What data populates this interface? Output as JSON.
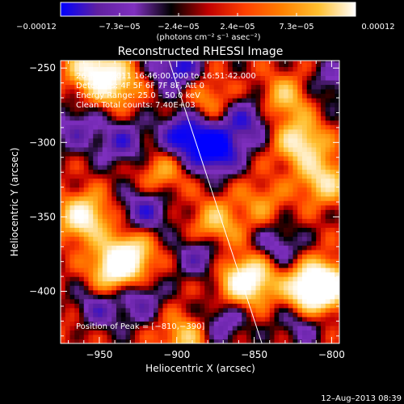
{
  "chart_data": {
    "type": "heatmap",
    "title": "Reconstructed RHESSI Image",
    "xlabel": "Heliocentric X (arcsec)",
    "ylabel": "Heliocentric Y (arcsec)",
    "xlim": [
      -975,
      -795
    ],
    "ylim": [
      -435,
      -245
    ],
    "x_ticks": [
      -950,
      -900,
      -850,
      -800
    ],
    "y_ticks": [
      -250,
      -300,
      -350,
      -400
    ],
    "x_tick_labels": [
      "−950",
      "−900",
      "−850",
      "−800"
    ],
    "y_tick_labels": [
      "−250",
      "−300",
      "−350",
      "−400"
    ],
    "colorbar": {
      "min": -0.00012,
      "max": 0.00012,
      "tick_labels": [
        "−0.00012",
        "−7.3e−05",
        "−2.4e−05",
        "2.4e−05",
        "7.3e−05",
        "0.00012"
      ],
      "units": "(photons cm⁻² s⁻¹ asec⁻²)",
      "colormap": [
        "#0000ff",
        "#6020a0",
        "#8030c0",
        "#000000",
        "#c00000",
        "#ff4000",
        "#ff8000",
        "#ffc030",
        "#ffffff"
      ]
    },
    "annotations": [
      "26–May–2011 16:46:00.000 to 16:51:42.000",
      "Detectors: 4F 5F 6F 7F 8F, Att 0",
      "Energy Range: 25.0 – 50.0 keV",
      "Clean     Total counts: 7.40E+03"
    ],
    "peak_label": "Position of Peak = [−810,−390]",
    "peak": [
      -810,
      -390
    ],
    "limb_line": [
      [
        -905,
        -245
      ],
      [
        -845,
        -435
      ]
    ],
    "grid": false,
    "footer": "12–Aug–2013 08:39",
    "hot_spots": [
      {
        "x": -805,
        "y": -395,
        "v": 1.0
      },
      {
        "x": -815,
        "y": -400,
        "v": 0.9
      },
      {
        "x": -850,
        "y": -390,
        "v": 0.7
      },
      {
        "x": -860,
        "y": -395,
        "v": 0.55
      },
      {
        "x": -875,
        "y": -355,
        "v": 0.6
      },
      {
        "x": -820,
        "y": -300,
        "v": 0.8
      },
      {
        "x": -805,
        "y": -325,
        "v": 0.7
      },
      {
        "x": -830,
        "y": -270,
        "v": 0.55
      },
      {
        "x": -960,
        "y": -350,
        "v": 0.9
      },
      {
        "x": -940,
        "y": -385,
        "v": 0.85
      },
      {
        "x": -930,
        "y": -375,
        "v": 0.75
      },
      {
        "x": -960,
        "y": -420,
        "v": 0.5
      },
      {
        "x": -940,
        "y": -260,
        "v": 0.7
      },
      {
        "x": -955,
        "y": -250,
        "v": 0.8
      },
      {
        "x": -895,
        "y": -430,
        "v": 0.55
      },
      {
        "x": -910,
        "y": -320,
        "v": 0.45
      },
      {
        "x": -880,
        "y": -270,
        "v": 0.4
      },
      {
        "x": -845,
        "y": -340,
        "v": 0.35
      },
      {
        "x": -900,
        "y": -250,
        "v": -0.75
      },
      {
        "x": -875,
        "y": -305,
        "v": -1.0
      },
      {
        "x": -895,
        "y": -295,
        "v": -0.85
      },
      {
        "x": -855,
        "y": -285,
        "v": -0.6
      },
      {
        "x": -935,
        "y": -300,
        "v": -0.55
      },
      {
        "x": -955,
        "y": -415,
        "v": -0.8
      },
      {
        "x": -920,
        "y": -345,
        "v": -0.6
      },
      {
        "x": -885,
        "y": -375,
        "v": -0.5
      },
      {
        "x": -835,
        "y": -370,
        "v": -0.45
      },
      {
        "x": -820,
        "y": -420,
        "v": -0.4
      },
      {
        "x": -965,
        "y": -290,
        "v": -0.45
      },
      {
        "x": -870,
        "y": -420,
        "v": -0.45
      },
      {
        "x": -925,
        "y": -405,
        "v": -0.5
      },
      {
        "x": -800,
        "y": -260,
        "v": -0.35
      }
    ]
  }
}
